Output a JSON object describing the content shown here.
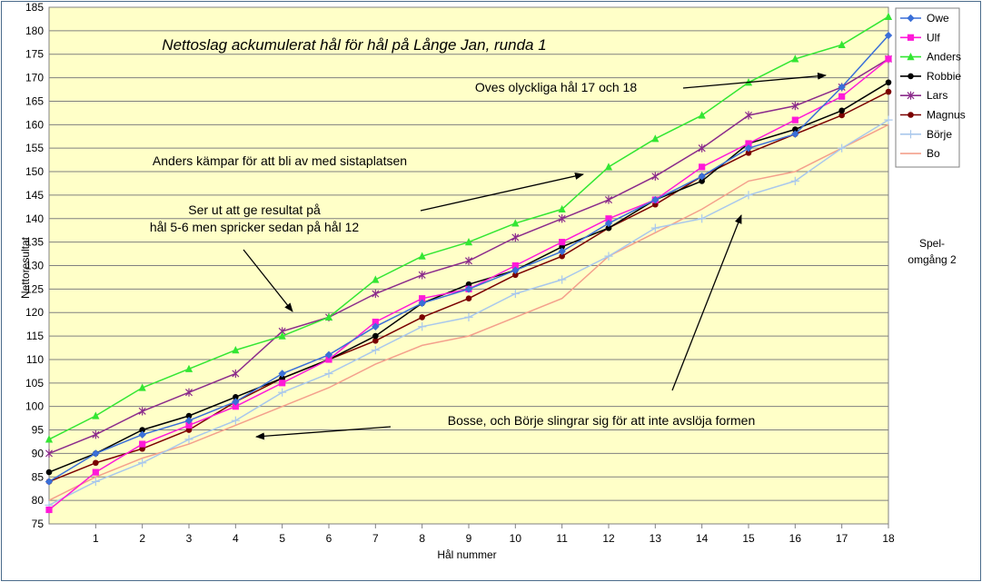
{
  "chart_data": {
    "type": "line",
    "title": "Nettoslag ackumulerat hål för hål på Långe Jan, runda 1",
    "xlabel": "Hål nummer",
    "ylabel": "Nettoresultat",
    "xlim": [
      0,
      18
    ],
    "ylim": [
      75,
      185
    ],
    "x_ticks": [
      1,
      2,
      3,
      4,
      5,
      6,
      7,
      8,
      9,
      10,
      11,
      12,
      13,
      14,
      15,
      16,
      17,
      18
    ],
    "y_ticks": [
      75,
      80,
      85,
      90,
      95,
      100,
      105,
      110,
      115,
      120,
      125,
      130,
      135,
      140,
      145,
      150,
      155,
      160,
      165,
      170,
      175,
      180,
      185
    ],
    "grid": true,
    "legend_position": "right",
    "side_note": "Spel-\nomgång 2",
    "x": [
      0,
      1,
      2,
      3,
      4,
      5,
      6,
      7,
      8,
      9,
      10,
      11,
      12,
      13,
      14,
      15,
      16,
      17,
      18
    ],
    "series": [
      {
        "name": "Owe",
        "color": "#3a6fd8",
        "marker": "diamond",
        "values": [
          84,
          90,
          94,
          97,
          101,
          107,
          111,
          117,
          122,
          125,
          129,
          133,
          139,
          144,
          149,
          155,
          158,
          168,
          179
        ]
      },
      {
        "name": "Ulf",
        "color": "#ff19d8",
        "marker": "square",
        "values": [
          78,
          86,
          92,
          96,
          100,
          105,
          110,
          118,
          123,
          125,
          130,
          135,
          140,
          144,
          151,
          156,
          161,
          166,
          174
        ]
      },
      {
        "name": "Anders",
        "color": "#33e633",
        "marker": "triangle",
        "values": [
          93,
          98,
          104,
          108,
          112,
          115,
          119,
          127,
          132,
          135,
          139,
          142,
          151,
          157,
          162,
          169,
          174,
          177,
          183
        ]
      },
      {
        "name": "Robbie",
        "color": "#000000",
        "marker": "circle",
        "values": [
          86,
          90,
          95,
          98,
          102,
          106,
          110,
          115,
          122,
          126,
          129,
          134,
          138,
          144,
          148,
          156,
          159,
          163,
          169
        ]
      },
      {
        "name": "Lars",
        "color": "#8b2b8b",
        "marker": "star",
        "values": [
          90,
          94,
          99,
          103,
          107,
          116,
          119,
          124,
          128,
          131,
          136,
          140,
          144,
          149,
          155,
          162,
          164,
          168,
          174
        ]
      },
      {
        "name": "Magnus",
        "color": "#7a0000",
        "marker": "circle",
        "values": [
          84,
          88,
          91,
          95,
          101,
          106,
          110,
          114,
          119,
          123,
          128,
          132,
          138,
          143,
          149,
          154,
          158,
          162,
          167
        ]
      },
      {
        "name": "Börje",
        "color": "#a9c8ec",
        "marker": "plus",
        "values": [
          79,
          84,
          88,
          93,
          97,
          103,
          107,
          112,
          117,
          119,
          124,
          127,
          132,
          138,
          140,
          145,
          148,
          155,
          161
        ]
      },
      {
        "name": "Bo",
        "color": "#f4a08c",
        "marker": "none",
        "values": [
          80,
          85,
          89,
          92,
          96,
          100,
          104,
          109,
          113,
          115,
          119,
          123,
          132,
          137,
          142,
          148,
          150,
          155,
          160
        ]
      }
    ],
    "annotations": [
      {
        "lines": [
          "Oves olyckliga hål 17 och 18"
        ]
      },
      {
        "lines": [
          "Anders kämpar för att bli av med sistaplatsen"
        ]
      },
      {
        "lines": [
          "Ser ut att ge resultat på",
          "hål 5-6 men spricker sedan på hål 12"
        ]
      },
      {
        "lines": [
          "Bosse, och Börje slingrar sig för att inte avslöja formen"
        ]
      }
    ]
  }
}
